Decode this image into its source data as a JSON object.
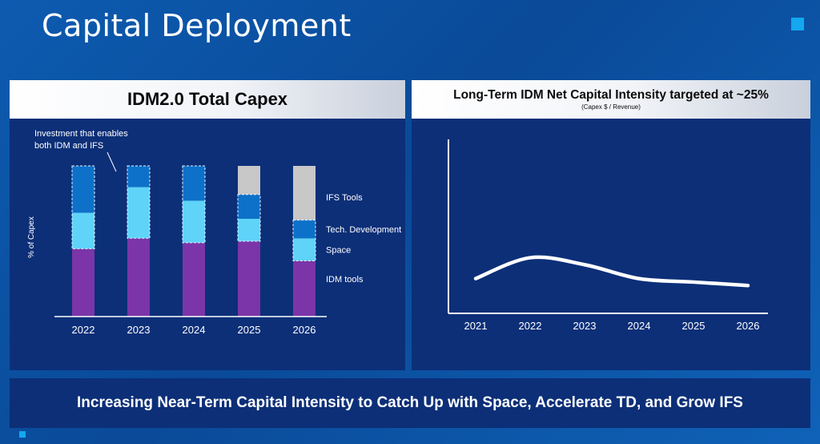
{
  "slide": {
    "title": "Capital Deployment",
    "footer": "Increasing Near-Term Capital Intensity to Catch Up with Space, Accelerate TD, and Grow IFS"
  },
  "left_panel": {
    "title": "IDM2.0 Total Capex",
    "annotation_line1": "Investment that enables",
    "annotation_line2": "both IDM and  IFS"
  },
  "right_panel": {
    "title": "Long-Term IDM Net Capital Intensity targeted at ~25%",
    "subtitle": "(Capex $ / Revenue)"
  },
  "colors": {
    "idm_tools": "#7b35a8",
    "space": "#5fd3f8",
    "tech_development": "#0e71c9",
    "ifs_tools": "#c8c8c8"
  },
  "chart_data": [
    {
      "type": "bar",
      "stacked": true,
      "categories": [
        "2022",
        "2023",
        "2024",
        "2025",
        "2026"
      ],
      "ylabel": "% of Capex",
      "ylim": [
        0,
        100
      ],
      "yticks_visible": false,
      "series": [
        {
          "name": "IDM tools",
          "key": "idm_tools",
          "values": [
            45,
            52,
            49,
            50,
            37
          ]
        },
        {
          "name": "Space",
          "key": "space",
          "values": [
            24,
            34,
            28,
            15,
            15
          ]
        },
        {
          "name": "Tech. Development",
          "key": "tech_development",
          "values": [
            31,
            14,
            23,
            16,
            12
          ]
        },
        {
          "name": "IFS Tools",
          "key": "ifs_tools",
          "values": [
            0,
            0,
            0,
            19,
            36
          ]
        }
      ],
      "highlight": "Space and Tech. Development segments outlined with dashed border",
      "legend": "right, labels beside 2026 bar"
    },
    {
      "type": "line",
      "title": "Long-Term IDM Net Capital Intensity targeted at ~25%",
      "subtitle": "(Capex $ / Revenue)",
      "x": [
        "2021",
        "2022",
        "2023",
        "2024",
        "2025",
        "2026"
      ],
      "ylim": [
        0,
        100
      ],
      "yticks_visible": false,
      "series": [
        {
          "values": [
            20,
            32,
            28,
            20,
            18,
            16
          ]
        }
      ]
    }
  ]
}
